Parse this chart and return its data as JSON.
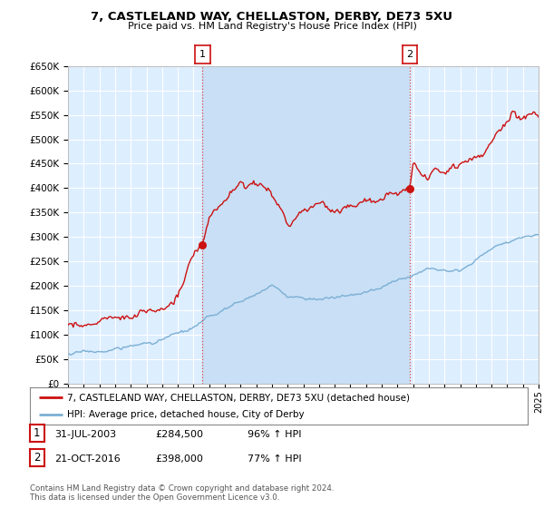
{
  "title": "7, CASTLELAND WAY, CHELLASTON, DERBY, DE73 5XU",
  "subtitle": "Price paid vs. HM Land Registry's House Price Index (HPI)",
  "ylabel_ticks": [
    "£0",
    "£50K",
    "£100K",
    "£150K",
    "£200K",
    "£250K",
    "£300K",
    "£350K",
    "£400K",
    "£450K",
    "£500K",
    "£550K",
    "£600K",
    "£650K"
  ],
  "ytick_values": [
    0,
    50000,
    100000,
    150000,
    200000,
    250000,
    300000,
    350000,
    400000,
    450000,
    500000,
    550000,
    600000,
    650000
  ],
  "hpi_color": "#7bafd4",
  "price_color": "#cc1111",
  "marker1_year": 2003.58,
  "marker2_year": 2016.79,
  "marker1_price": 284500,
  "marker2_price": 398000,
  "legend_house": "7, CASTLELAND WAY, CHELLASTON, DERBY, DE73 5XU (detached house)",
  "legend_hpi": "HPI: Average price, detached house, City of Derby",
  "info1": [
    "1",
    "31-JUL-2003",
    "£284,500",
    "96% ↑ HPI"
  ],
  "info2": [
    "2",
    "21-OCT-2016",
    "£398,000",
    "77% ↑ HPI"
  ],
  "footnote": "Contains HM Land Registry data © Crown copyright and database right 2024.\nThis data is licensed under the Open Government Licence v3.0.",
  "fig_bg": "#ffffff",
  "plot_bg": "#ddeeff",
  "highlight_bg": "#c8dff5",
  "grid_color": "#ffffff",
  "dashed_color": "#dd4444"
}
